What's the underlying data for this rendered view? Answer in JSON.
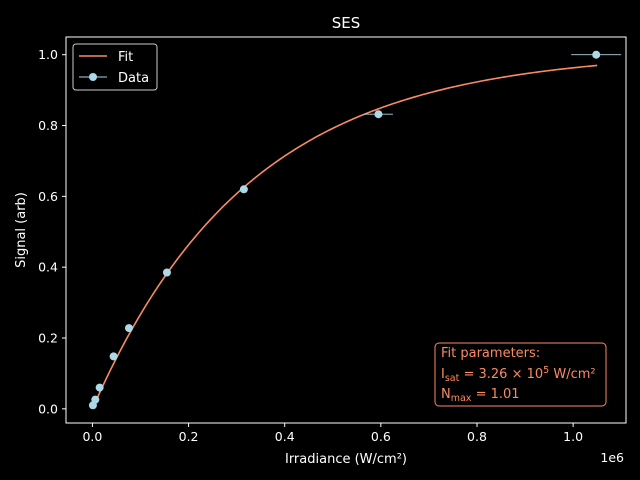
{
  "chart_data": {
    "type": "scatter",
    "title": "SES",
    "xlabel": "Irradiance (W/cm²)",
    "ylabel": "Signal (arb)",
    "x_offset_label": "1e6",
    "xlim": [
      -55000,
      1110000
    ],
    "ylim": [
      -0.04,
      1.05
    ],
    "xticks": [
      0.0,
      0.2,
      0.4,
      0.6,
      0.8,
      1.0
    ],
    "xtick_labels": [
      "0.0",
      "0.2",
      "0.4",
      "0.6",
      "0.8",
      "1.0"
    ],
    "yticks": [
      0.0,
      0.2,
      0.4,
      0.6,
      0.8,
      1.0
    ],
    "ytick_labels": [
      "0.0",
      "0.2",
      "0.4",
      "0.6",
      "0.8",
      "1.0"
    ],
    "grid": false,
    "legend_location": "top-left",
    "series": [
      {
        "name": "Fit",
        "kind": "line",
        "color": "#fa8a63",
        "model": "Nmax*(1-exp(-I/Isat))",
        "Isat": 326000,
        "Nmax": 1.01,
        "x_range": [
          0,
          1050000
        ]
      },
      {
        "name": "Data",
        "kind": "errorbar",
        "color": "#add8e6",
        "points": [
          {
            "x": 1000,
            "y": 0.01,
            "xerr": 0
          },
          {
            "x": 6000,
            "y": 0.026,
            "xerr": 0
          },
          {
            "x": 15000,
            "y": 0.06,
            "xerr": 0
          },
          {
            "x": 44000,
            "y": 0.148,
            "xerr": 0
          },
          {
            "x": 76000,
            "y": 0.228,
            "xerr": 0
          },
          {
            "x": 155000,
            "y": 0.385,
            "xerr": 0
          },
          {
            "x": 315000,
            "y": 0.62,
            "xerr": 0
          },
          {
            "x": 595000,
            "y": 0.832,
            "xerr": 30000
          },
          {
            "x": 1048000,
            "y": 1.0,
            "xerr": 52000
          }
        ]
      }
    ],
    "annotation": {
      "header": "Fit parameters:",
      "isat_symbol": "I",
      "isat_sub": "sat",
      "isat_text": " = 3.26 × 10",
      "isat_exp": "5",
      "isat_unit": " W/cm²",
      "nmax_symbol": "N",
      "nmax_sub": "max",
      "nmax_text": " = 1.01",
      "color": "#fa8a63"
    }
  }
}
